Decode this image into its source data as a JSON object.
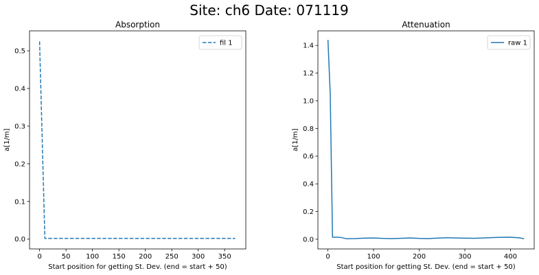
{
  "figure": {
    "suptitle": "Site: ch6 Date: 071119"
  },
  "chart_data": [
    {
      "type": "line",
      "title": "Absorption",
      "xlabel": "Start position for getting St. Dev. (end = start + 50)",
      "ylabel": "a[1/m]",
      "xlim": [
        -19,
        390
      ],
      "ylim": [
        -0.026,
        0.553
      ],
      "xticks": [
        0,
        50,
        100,
        150,
        200,
        250,
        300,
        350
      ],
      "yticks": [
        0.0,
        0.1,
        0.2,
        0.3,
        0.4,
        0.5
      ],
      "ytick_labels": [
        "0.0",
        "0.1",
        "0.2",
        "0.3",
        "0.4",
        "0.5"
      ],
      "legend": "top-right",
      "series": [
        {
          "name": "fil 1",
          "color": "#1f77b4",
          "linestyle": "dashed",
          "x": [
            0,
            10,
            20,
            50,
            100,
            150,
            200,
            250,
            300,
            350,
            370
          ],
          "y": [
            0.525,
            0.002,
            0.002,
            0.002,
            0.002,
            0.002,
            0.002,
            0.002,
            0.002,
            0.002,
            0.002
          ]
        }
      ]
    },
    {
      "type": "line",
      "title": "Attenuation",
      "xlabel": "Start position for getting St. Dev. (end = start + 50)",
      "ylabel": "a[1/m]",
      "xlim": [
        -22,
        452
      ],
      "ylim": [
        -0.07,
        1.505
      ],
      "xticks": [
        0,
        100,
        200,
        300,
        400
      ],
      "yticks": [
        0.0,
        0.2,
        0.4,
        0.6,
        0.8,
        1.0,
        1.2,
        1.4
      ],
      "ytick_labels": [
        "0.0",
        "0.2",
        "0.4",
        "0.6",
        "0.8",
        "1.0",
        "1.2",
        "1.4"
      ],
      "legend": "top-right",
      "series": [
        {
          "name": "raw 1",
          "color": "#1f77b4",
          "linestyle": "solid",
          "x": [
            0,
            5,
            10,
            20,
            30,
            40,
            60,
            80,
            100,
            120,
            140,
            160,
            180,
            200,
            220,
            240,
            260,
            280,
            300,
            320,
            340,
            360,
            380,
            400,
            420,
            430
          ],
          "y": [
            1.44,
            1.05,
            0.015,
            0.015,
            0.012,
            0.004,
            0.005,
            0.008,
            0.009,
            0.006,
            0.005,
            0.007,
            0.009,
            0.006,
            0.005,
            0.008,
            0.011,
            0.009,
            0.008,
            0.007,
            0.009,
            0.012,
            0.014,
            0.015,
            0.01,
            0.004
          ]
        }
      ]
    }
  ]
}
